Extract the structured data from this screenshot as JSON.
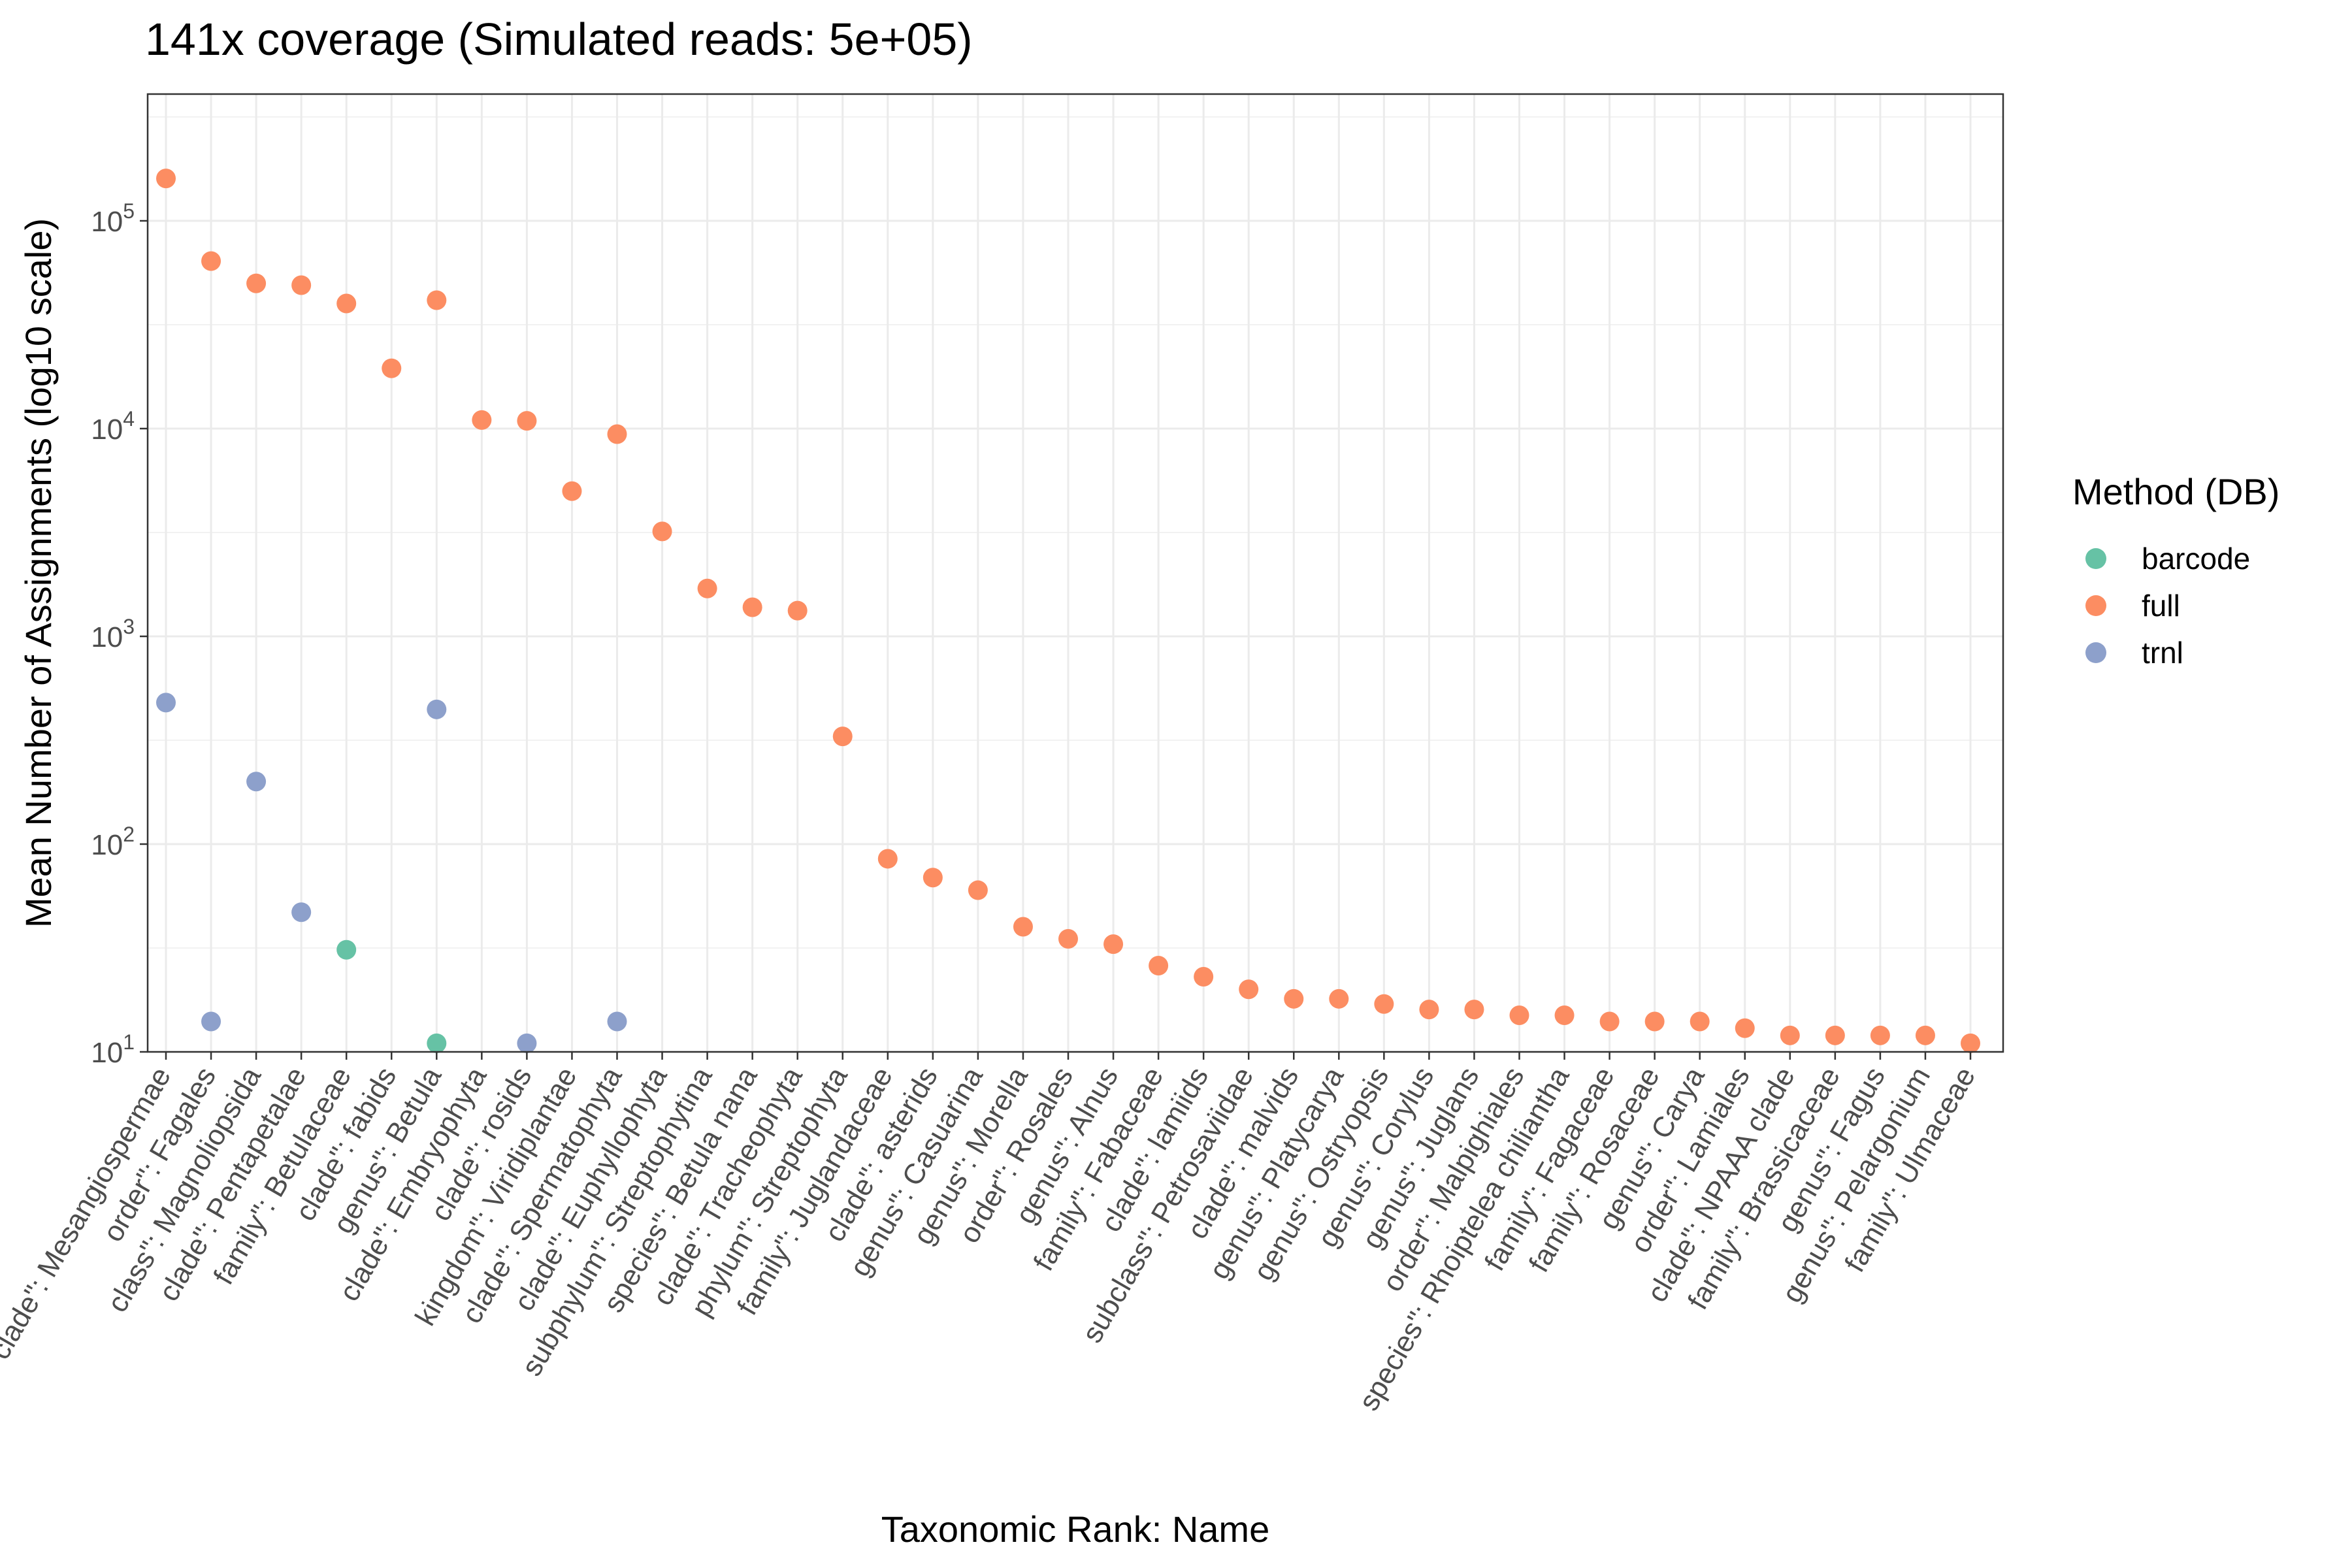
{
  "chart_data": {
    "type": "scatter",
    "title": "141x coverage (Simulated reads: 5e+05)",
    "xlabel": "Taxonomic Rank: Name",
    "ylabel": "Mean Number of Assignments (log10 scale)",
    "y_scale": "log10",
    "ylim": [
      10,
      400000
    ],
    "y_ticks": [
      {
        "base": "10",
        "exp": "1",
        "value": 10
      },
      {
        "base": "10",
        "exp": "2",
        "value": 100
      },
      {
        "base": "10",
        "exp": "3",
        "value": 1000
      },
      {
        "base": "10",
        "exp": "4",
        "value": 10000
      },
      {
        "base": "10",
        "exp": "5",
        "value": 100000
      }
    ],
    "grid": true,
    "legend_position": "right",
    "legend_title": "Method (DB)",
    "categories": [
      "clade\": Mesangiospermae",
      "order\": Fagales",
      "class\": Magnoliopsida",
      "clade\": Pentapetalae",
      "family\": Betulaceae",
      "clade\": fabids",
      "genus\": Betula",
      "clade\": Embryophyta",
      "clade\": rosids",
      "kingdom\": Viridiplantae",
      "clade\": Spermatophyta",
      "clade\": Euphyllophyta",
      "subphylum\": Streptophytina",
      "species\": Betula nana",
      "clade\": Tracheophyta",
      "phylum\": Streptophyta",
      "family\": Juglandaceae",
      "clade\": asterids",
      "genus\": Casuarina",
      "genus\": Morella",
      "order\": Rosales",
      "genus\": Alnus",
      "family\": Fabaceae",
      "clade\": lamiids",
      "subclass\": Petrosaviidae",
      "clade\": malvids",
      "genus\": Platycarya",
      "genus\": Ostryopsis",
      "genus\": Corylus",
      "genus\": Juglans",
      "order\": Malpighiales",
      "species\": Rhoiptelea chiliantha",
      "family\": Fagaceae",
      "family\": Rosaceae",
      "genus\": Carya",
      "order\": Lamiales",
      "clade\": NPAAA clade",
      "family\": Brassicaceae",
      "genus\": Fagus",
      "genus\": Pelargonium",
      "family\": Ulmaceae"
    ],
    "series": [
      {
        "name": "barcode",
        "color": "#66c2a5",
        "points": [
          {
            "category": "family\": Betulaceae",
            "value": 31
          },
          {
            "category": "genus\": Betula",
            "value": 11
          }
        ]
      },
      {
        "name": "full",
        "color": "#fc8d62",
        "points": [
          {
            "category": "clade\": Mesangiospermae",
            "value": 160000
          },
          {
            "category": "order\": Fagales",
            "value": 64000
          },
          {
            "category": "class\": Magnoliopsida",
            "value": 50000
          },
          {
            "category": "clade\": Pentapetalae",
            "value": 49000
          },
          {
            "category": "family\": Betulaceae",
            "value": 40000
          },
          {
            "category": "clade\": fabids",
            "value": 19500
          },
          {
            "category": "genus\": Betula",
            "value": 41500
          },
          {
            "category": "clade\": Embryophyta",
            "value": 11000
          },
          {
            "category": "clade\": rosids",
            "value": 10900
          },
          {
            "category": "kingdom\": Viridiplantae",
            "value": 5000
          },
          {
            "category": "clade\": Spermatophyta",
            "value": 9400
          },
          {
            "category": "clade\": Euphyllophyta",
            "value": 3200
          },
          {
            "category": "subphylum\": Streptophytina",
            "value": 1700
          },
          {
            "category": "species\": Betula nana",
            "value": 1380
          },
          {
            "category": "clade\": Tracheophyta",
            "value": 1330
          },
          {
            "category": "phylum\": Streptophyta",
            "value": 330
          },
          {
            "category": "family\": Juglandaceae",
            "value": 85
          },
          {
            "category": "clade\": asterids",
            "value": 69
          },
          {
            "category": "genus\": Casuarina",
            "value": 60
          },
          {
            "category": "genus\": Morella",
            "value": 40
          },
          {
            "category": "order\": Rosales",
            "value": 35
          },
          {
            "category": "genus\": Alnus",
            "value": 33
          },
          {
            "category": "family\": Fabaceae",
            "value": 26
          },
          {
            "category": "clade\": lamiids",
            "value": 23
          },
          {
            "category": "subclass\": Petrosaviidae",
            "value": 20
          },
          {
            "category": "clade\": malvids",
            "value": 18
          },
          {
            "category": "genus\": Platycarya",
            "value": 18
          },
          {
            "category": "genus\": Ostryopsis",
            "value": 17
          },
          {
            "category": "genus\": Corylus",
            "value": 16
          },
          {
            "category": "genus\": Juglans",
            "value": 16
          },
          {
            "category": "order\": Malpighiales",
            "value": 15
          },
          {
            "category": "species\": Rhoiptelea chiliantha",
            "value": 15
          },
          {
            "category": "family\": Fagaceae",
            "value": 14
          },
          {
            "category": "family\": Rosaceae",
            "value": 14
          },
          {
            "category": "genus\": Carya",
            "value": 14
          },
          {
            "category": "order\": Lamiales",
            "value": 13
          },
          {
            "category": "clade\": NPAAA clade",
            "value": 12
          },
          {
            "category": "family\": Brassicaceae",
            "value": 12
          },
          {
            "category": "genus\": Fagus",
            "value": 12
          },
          {
            "category": "genus\": Pelargonium",
            "value": 12
          },
          {
            "category": "family\": Ulmaceae",
            "value": 11
          }
        ]
      },
      {
        "name": "trnl",
        "color": "#8da0cb",
        "points": [
          {
            "category": "clade\": Mesangiospermae",
            "value": 480
          },
          {
            "category": "order\": Fagales",
            "value": 14
          },
          {
            "category": "class\": Magnoliopsida",
            "value": 200
          },
          {
            "category": "clade\": Pentapetalae",
            "value": 47
          },
          {
            "category": "genus\": Betula",
            "value": 445
          },
          {
            "category": "clade\": rosids",
            "value": 11
          },
          {
            "category": "clade\": Spermatophyta",
            "value": 14
          }
        ]
      }
    ]
  }
}
